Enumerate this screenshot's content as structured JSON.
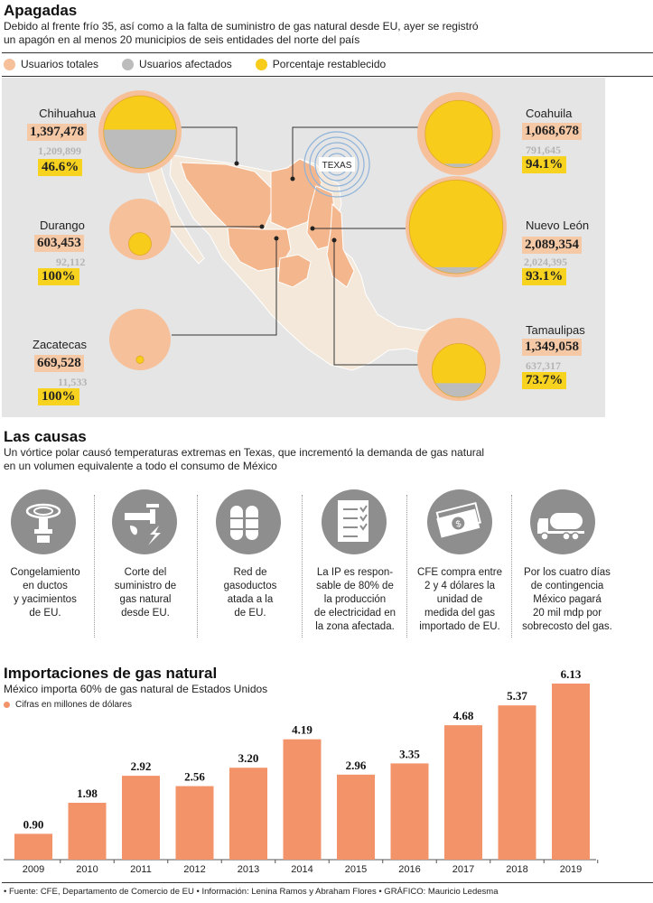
{
  "section1": {
    "title": "Apagadas",
    "subtitle_line1": "Debido al frente frío 35, así como a la falta de suministro de gas natural desde EU, ayer se registró",
    "subtitle_line2": "un apagón en al menos 20 municipios de seis entidades del norte del país",
    "legend": [
      {
        "label": "Usuarios totales",
        "color": "#f6c09a"
      },
      {
        "label": "Usuarios afectados",
        "color": "#bcbcbc"
      },
      {
        "label": "Porcentaje restablecido",
        "color": "#f7cc1a"
      }
    ],
    "texas_label": "TEXAS",
    "states": [
      {
        "name": "Chihuahua",
        "total": "1,397,478",
        "affected": "1,209,899",
        "percent": "46.6%",
        "affected_share": 0.866,
        "restored_share": 0.466
      },
      {
        "name": "Durango",
        "total": "603,453",
        "affected": "92,112",
        "percent": "100%",
        "affected_share": 0.153,
        "restored_share": 1.0
      },
      {
        "name": "Zacatecas",
        "total": "669,528",
        "affected": "11,533",
        "percent": "100%",
        "affected_share": 0.017,
        "restored_share": 1.0
      },
      {
        "name": "Coahuila",
        "total": "1,068,678",
        "affected": "791,645",
        "percent": "94.1%",
        "affected_share": 0.741,
        "restored_share": 0.941
      },
      {
        "name": "Nuevo León",
        "total": "2,089,354",
        "affected": "2,024,395",
        "percent": "93.1%",
        "affected_share": 0.969,
        "restored_share": 0.931
      },
      {
        "name": "Tamaulipas",
        "total": "1,349,058",
        "affected": "637,317",
        "percent": "73.7%",
        "affected_share": 0.472,
        "restored_share": 0.737
      }
    ]
  },
  "section2": {
    "title": "Las causas",
    "subtitle_line1": "Un vórtice polar causó temperaturas extremas en Texas, que incrementó la demanda de gas natural",
    "subtitle_line2": "en un volumen equivalente a todo el consumo de México",
    "causes": [
      {
        "icon": "frozen-pipe-icon",
        "lines": [
          "Congelamiento",
          "en ductos",
          "y yacimientos",
          "de EU."
        ]
      },
      {
        "icon": "gas-valve-icon",
        "lines": [
          "Corte del",
          "suministro de",
          "gas natural",
          "desde EU."
        ]
      },
      {
        "icon": "gas-tanks-icon",
        "lines": [
          "Red de",
          "gasoductos",
          "atada a la",
          "de EU."
        ]
      },
      {
        "icon": "checklist-icon",
        "lines": [
          "La IP es respon-",
          "sable de 80% de",
          "la producción",
          "de electricidad en",
          "la zona afectada."
        ]
      },
      {
        "icon": "money-icon",
        "lines": [
          "CFE compra entre",
          "2 y 4 dólares la",
          "unidad de",
          "medida del gas",
          "importado de EU."
        ]
      },
      {
        "icon": "tanker-truck-icon",
        "lines": [
          "Por los cuatro días",
          "de contingencia",
          "México pagará",
          "20 mil mdp por",
          "sobrecosto del gas."
        ]
      }
    ]
  },
  "section3": {
    "title": "Importaciones de gas natural",
    "subtitle": "México importa 60% de gas natural de Estados Unidos",
    "note": "Cifras en millones de dólares",
    "bar_color": "#f2936a"
  },
  "chart_data": {
    "type": "bar",
    "title": "Importaciones de gas natural",
    "categories": [
      "2009",
      "2010",
      "2011",
      "2012",
      "2013",
      "2014",
      "2015",
      "2016",
      "2017",
      "2018",
      "2019"
    ],
    "values": [
      0.9,
      1.98,
      2.92,
      2.56,
      3.2,
      4.19,
      2.96,
      3.35,
      4.68,
      5.37,
      6.13
    ],
    "value_labels": [
      "0.90",
      "1.98",
      "2.92",
      "2.56",
      "3.20",
      "4.19",
      "2.96",
      "3.35",
      "4.68",
      "5.37",
      "6.13"
    ],
    "ylim": [
      0,
      6.13
    ],
    "grid": false
  },
  "footer": "• Fuente: CFE, Departamento de Comercio de EU • Información: Lenina Ramos y Abraham Flores • GRÁFICO: Mauricio Ledesma"
}
